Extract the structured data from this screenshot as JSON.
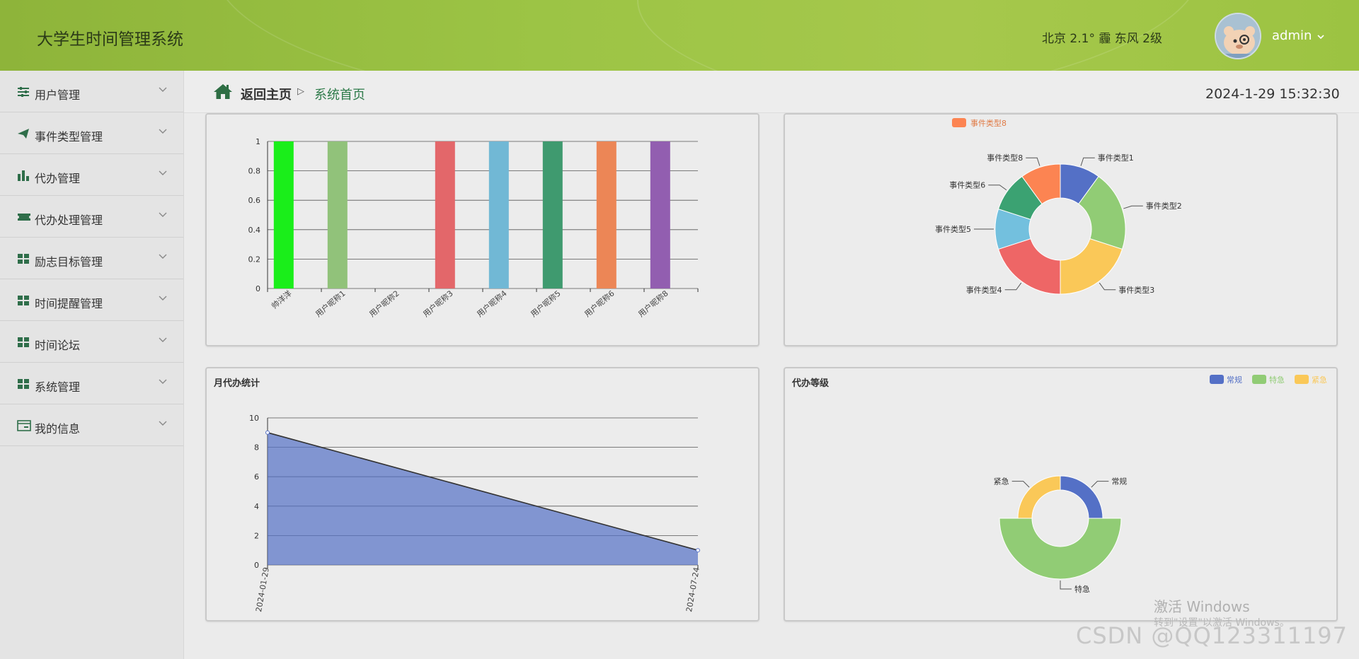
{
  "header": {
    "app_title": "大学生时间管理系统",
    "weather": "北京  2.1°  霾  东风  2级",
    "user_name": "admin",
    "caret": "⌄"
  },
  "sidebar": {
    "items": [
      {
        "label": "用户管理",
        "icon": "sliders-icon"
      },
      {
        "label": "事件类型管理",
        "icon": "paper-plane-icon"
      },
      {
        "label": "代办管理",
        "icon": "bar-chart-icon"
      },
      {
        "label": "代办处理管理",
        "icon": "ticket-icon"
      },
      {
        "label": "励志目标管理",
        "icon": "grid-icon"
      },
      {
        "label": "时间提醒管理",
        "icon": "grid-icon"
      },
      {
        "label": "时间论坛",
        "icon": "grid-icon"
      },
      {
        "label": "系统管理",
        "icon": "grid-icon"
      },
      {
        "label": "我的信息",
        "icon": "card-icon"
      }
    ]
  },
  "breadcrumb": {
    "home": "返回主页",
    "separator": "▷",
    "current": "系统首页",
    "datetime": "2024-1-29 15:32:30"
  },
  "colors": {
    "accent": "#2e7b4a",
    "header": "#9cc445"
  },
  "chart_data": [
    {
      "type": "bar",
      "title": "",
      "categories": [
        "帅洋洋",
        "用户昵称1",
        "用户昵称2",
        "用户昵称3",
        "用户昵称4",
        "用户昵称5",
        "用户昵称6",
        "用户昵称8"
      ],
      "values": [
        1,
        1,
        0,
        1,
        1,
        1,
        1,
        1
      ],
      "colors": [
        "#1aee1a",
        "#91c27a",
        "#ccc",
        "#e3676a",
        "#71b8d5",
        "#3f9a6f",
        "#ec8656",
        "#925eb0"
      ],
      "ylim": [
        0,
        1
      ],
      "yticks": [
        "0",
        "0.2",
        "0.4",
        "0.6",
        "0.8",
        "1"
      ],
      "grid": true
    },
    {
      "type": "pie",
      "title": "",
      "legend": [
        "事件类型8"
      ],
      "labels": [
        "事件类型1",
        "事件类型2",
        "事件类型3",
        "事件类型4",
        "事件类型5",
        "事件类型6",
        "事件类型8"
      ],
      "values": [
        1,
        2,
        2,
        2,
        1,
        1,
        1
      ],
      "colors": [
        "#5470c6",
        "#91cc75",
        "#fac858",
        "#ee6666",
        "#73c0de",
        "#3ba272",
        "#fc8452"
      ]
    },
    {
      "type": "area",
      "title": "月代办统计",
      "x": [
        "2024-01-29",
        "2024-07-24"
      ],
      "y": [
        9,
        1
      ],
      "ylim": [
        0,
        10
      ],
      "yticks": [
        "0",
        "2",
        "4",
        "6",
        "8",
        "10"
      ],
      "color": "#5470c6"
    },
    {
      "type": "pie",
      "title": "代办等级",
      "legend": [
        "常规",
        "特急",
        "紧急"
      ],
      "labels": [
        "常规",
        "特急",
        "紧急"
      ],
      "values": [
        1,
        2,
        1
      ],
      "colors": [
        "#5470c6",
        "#91cc75",
        "#fac858"
      ]
    }
  ],
  "watermark": {
    "activate": "激活 Windows",
    "activate_hint": "转到\"设置\"以激活 Windows。",
    "csdn": "CSDN @QQ123311197"
  }
}
